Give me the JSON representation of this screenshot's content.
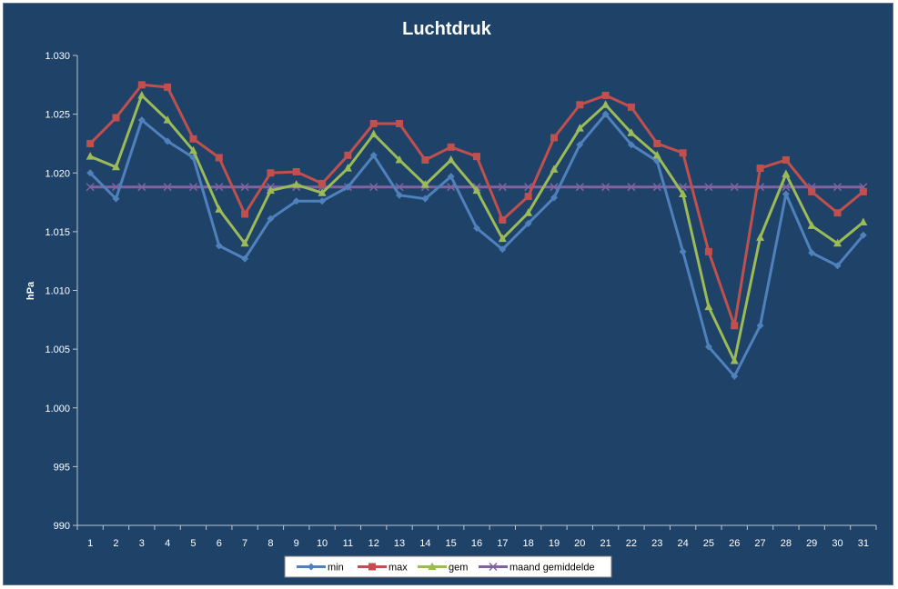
{
  "chart_data": {
    "type": "line",
    "title": "Luchtdruk",
    "xlabel": "",
    "ylabel": "hPa",
    "x": [
      1,
      2,
      3,
      4,
      5,
      6,
      7,
      8,
      9,
      10,
      11,
      12,
      13,
      14,
      15,
      16,
      17,
      18,
      19,
      20,
      21,
      22,
      23,
      24,
      25,
      26,
      27,
      28,
      29,
      30,
      31
    ],
    "ylim": [
      990,
      1030
    ],
    "ytick_values": [
      990,
      995,
      1000,
      1005,
      1010,
      1015,
      1020,
      1025,
      1030
    ],
    "ytick_labels": [
      "990",
      "995",
      "1.000",
      "1.005",
      "1.010",
      "1.015",
      "1.020",
      "1.025",
      "1.030"
    ],
    "grid": false,
    "legend_position": "bottom",
    "series": [
      {
        "name": "min",
        "color": "#4f81bd",
        "marker": "diamond",
        "values": [
          1020.0,
          1017.8,
          1024.5,
          1022.7,
          1021.3,
          1013.8,
          1012.7,
          1016.1,
          1017.6,
          1017.6,
          1018.8,
          1021.5,
          1018.1,
          1017.8,
          1019.7,
          1015.3,
          1013.5,
          1015.7,
          1017.9,
          1022.4,
          1025.0,
          1022.4,
          1021.0,
          1013.3,
          1005.2,
          1002.7,
          1007.0,
          1018.2,
          1013.2,
          1012.1,
          1014.7
        ]
      },
      {
        "name": "max",
        "color": "#c0504d",
        "marker": "square",
        "values": [
          1022.5,
          1024.7,
          1027.5,
          1027.3,
          1022.9,
          1021.3,
          1016.5,
          1020.0,
          1020.1,
          1019.1,
          1021.5,
          1024.2,
          1024.2,
          1021.1,
          1022.2,
          1021.4,
          1016.0,
          1018.0,
          1023.0,
          1025.8,
          1026.6,
          1025.6,
          1022.5,
          1021.7,
          1013.3,
          1007.0,
          1020.4,
          1021.1,
          1018.4,
          1016.6,
          1018.4
        ]
      },
      {
        "name": "gem",
        "color": "#9bbb59",
        "marker": "triangle",
        "values": [
          1021.4,
          1020.5,
          1026.6,
          1024.5,
          1021.9,
          1016.9,
          1014.0,
          1018.5,
          1019.0,
          1018.3,
          1020.4,
          1023.3,
          1021.1,
          1019.0,
          1021.1,
          1018.5,
          1014.4,
          1016.6,
          1020.3,
          1023.8,
          1025.8,
          1023.4,
          1021.5,
          1018.2,
          1008.6,
          1004.0,
          1014.5,
          1019.9,
          1015.5,
          1014.0,
          1015.8
        ]
      },
      {
        "name": "maand gemiddelde",
        "color": "#8064a2",
        "marker": "x",
        "values": [
          1018.8,
          1018.8,
          1018.8,
          1018.8,
          1018.8,
          1018.8,
          1018.8,
          1018.8,
          1018.8,
          1018.8,
          1018.8,
          1018.8,
          1018.8,
          1018.8,
          1018.8,
          1018.8,
          1018.8,
          1018.8,
          1018.8,
          1018.8,
          1018.8,
          1018.8,
          1018.8,
          1018.8,
          1018.8,
          1018.8,
          1018.8,
          1018.8,
          1018.8,
          1018.8,
          1018.8
        ]
      }
    ]
  }
}
